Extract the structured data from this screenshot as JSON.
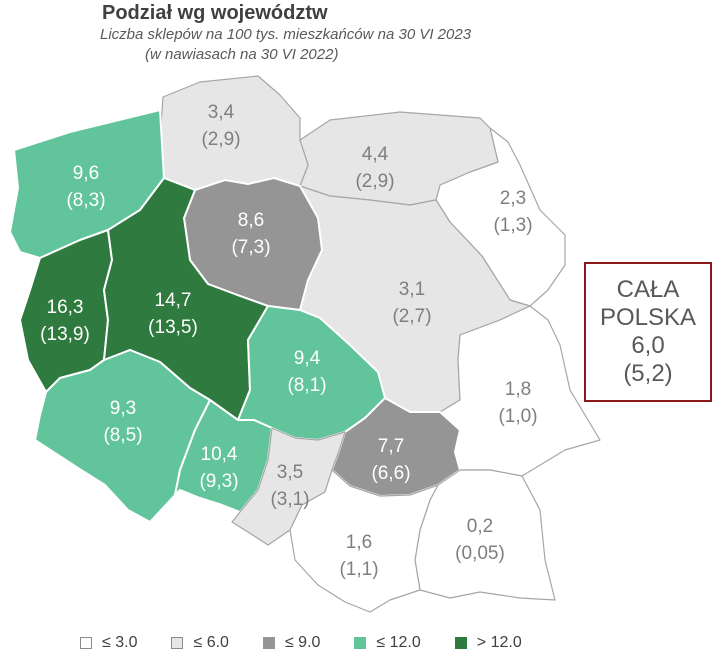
{
  "header": {
    "title": "Podział wg województw",
    "subtitle": "Liczba sklepów na 100 tys. mieszkańców na 30 VI 2023",
    "subtitle2": "(w nawiasach na 30 VI 2022)"
  },
  "colors": {
    "le3": "#ffffff",
    "le6": "#e6e6e6",
    "le9": "#959595",
    "le12": "#62c49b",
    "gt12": "#2e7a3f",
    "border_box": "#8b1a1a"
  },
  "regions": [
    {
      "name": "zachodniopomorskie",
      "value": "9,6",
      "prev": "(8,3)",
      "class": "le12"
    },
    {
      "name": "pomorskie",
      "value": "3,4",
      "prev": "(2,9)",
      "class": "le6"
    },
    {
      "name": "warmińsko-mazurskie",
      "value": "4,4",
      "prev": "(2,9)",
      "class": "le6"
    },
    {
      "name": "podlaskie",
      "value": "2,3",
      "prev": "(1,3)",
      "class": "le3"
    },
    {
      "name": "kujawsko-pomorskie",
      "value": "8,6",
      "prev": "(7,3)",
      "class": "le9"
    },
    {
      "name": "lubuskie",
      "value": "16,3",
      "prev": "(13,9)",
      "class": "gt12"
    },
    {
      "name": "wielkopolskie",
      "value": "14,7",
      "prev": "(13,5)",
      "class": "gt12"
    },
    {
      "name": "mazowieckie",
      "value": "3,1",
      "prev": "(2,7)",
      "class": "le6"
    },
    {
      "name": "łódzkie",
      "value": "9,4",
      "prev": "(8,1)",
      "class": "le12"
    },
    {
      "name": "dolnośląskie",
      "value": "9,3",
      "prev": "(8,5)",
      "class": "le12"
    },
    {
      "name": "opolskie",
      "value": "10,4",
      "prev": "(9,3)",
      "class": "le12"
    },
    {
      "name": "lubelskie",
      "value": "1,8",
      "prev": "(1,0)",
      "class": "le3"
    },
    {
      "name": "świętokrzyskie",
      "value": "7,7",
      "prev": "(6,6)",
      "class": "le9"
    },
    {
      "name": "śląskie",
      "value": "3,5",
      "prev": "(3,1)",
      "class": "le6"
    },
    {
      "name": "małopolskie",
      "value": "1,6",
      "prev": "(1,1)",
      "class": "le3"
    },
    {
      "name": "podkarpackie",
      "value": "0,2",
      "prev": "(0,05)",
      "class": "le3"
    }
  ],
  "total": {
    "line1": "CAŁA",
    "line2": "POLSKA",
    "value": "6,0",
    "prev": "(5,2)"
  },
  "legend": [
    {
      "label": "≤ 3.0",
      "class": "le3"
    },
    {
      "label": "≤ 6.0",
      "class": "le6"
    },
    {
      "label": "≤ 9.0",
      "class": "le9"
    },
    {
      "label": "≤ 12.0",
      "class": "le12"
    },
    {
      "label": "> 12.0",
      "class": "gt12"
    }
  ]
}
